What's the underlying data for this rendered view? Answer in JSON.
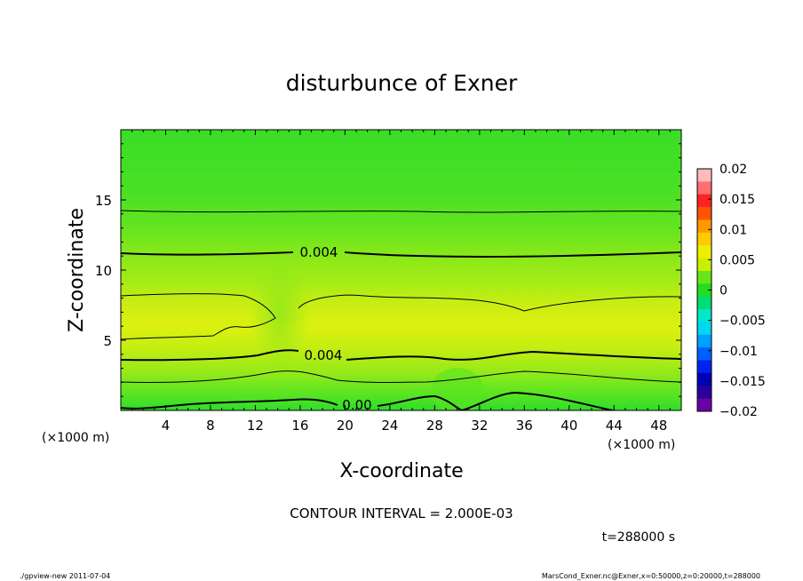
{
  "chart_data": {
    "type": "heatmap",
    "title": "disturbunce of Exner",
    "xlabel": "X-coordinate",
    "ylabel": "Z-coordinate",
    "x_unit": "(×1000 m)",
    "x_unit_right": "(×1000 m)",
    "xlim": [
      0,
      50
    ],
    "ylim": [
      0,
      20
    ],
    "x_ticks": [
      4,
      8,
      12,
      16,
      20,
      24,
      28,
      32,
      36,
      40,
      44,
      48
    ],
    "y_ticks": [
      5,
      10,
      15
    ],
    "colorbar": {
      "levels": [
        0.02,
        0.015,
        0.01,
        0.005,
        0,
        -0.005,
        -0.01,
        -0.015,
        -0.02
      ],
      "tick_labels": [
        "0.02",
        "0.015",
        "0.01",
        "0.005",
        "0",
        "−0.005",
        "−0.01",
        "−0.015",
        "−0.02"
      ],
      "colors": [
        "#ffbbbb",
        "#ff6f6f",
        "#ff2222",
        "#ff5500",
        "#ff9900",
        "#ffcc00",
        "#eeee00",
        "#c8f000",
        "#66e61a",
        "#22dd22",
        "#00dd77",
        "#00e8c8",
        "#00d6f0",
        "#00a0ff",
        "#0060ff",
        "#0022ee",
        "#0000b8",
        "#2a0098",
        "#6a00a8"
      ]
    },
    "contour_interval": "2.000E-03",
    "contour_labels": [
      {
        "text": "0.004",
        "x": 18,
        "z": 11.3
      },
      {
        "text": "0.004",
        "x": 18.5,
        "z": 3.8
      },
      {
        "text": "0.00",
        "x": 22,
        "z": 0.4
      }
    ],
    "background_field": "fill ~0.002–0.006, maximum (~0.006) near z≈6, reduced values near x≈14–16",
    "grid": false
  },
  "texts": {
    "contour_interval_label": "CONTOUR INTERVAL = 2.000E-03",
    "time_label": "t=288000 s",
    "footer_left": "./gpview-new   2011-07-04",
    "footer_right": "MarsCond_Exner.nc@Exner,x=0:50000,z=0:20000,t=288000"
  }
}
